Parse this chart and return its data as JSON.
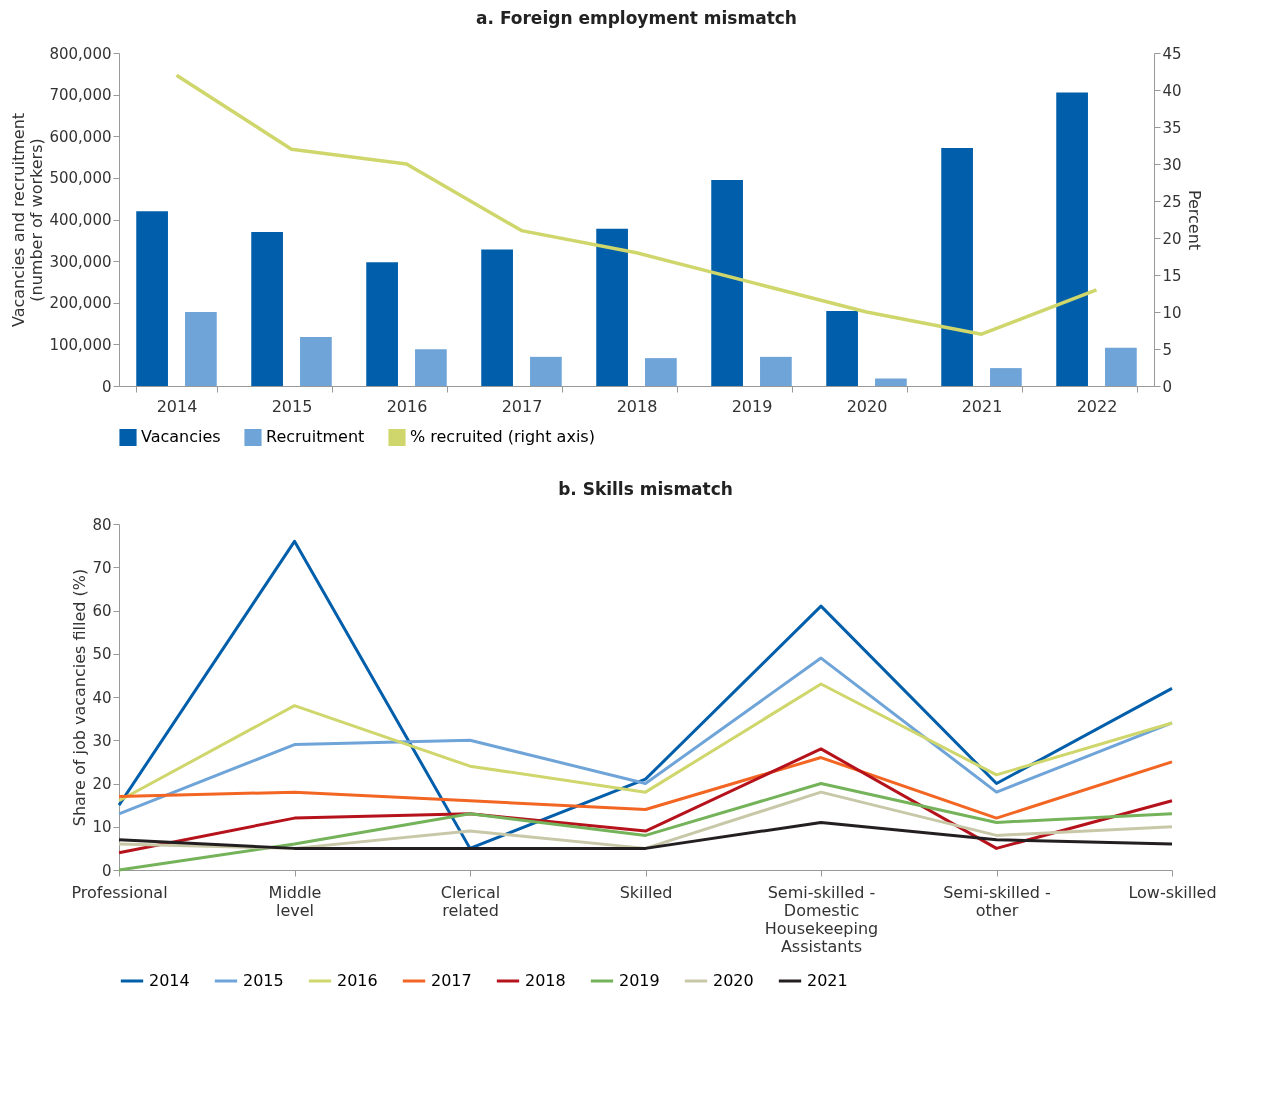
{
  "chart_data": [
    {
      "type": "bar",
      "title": "a. Foreign employment mismatch",
      "categories": [
        "2014",
        "2015",
        "2016",
        "2017",
        "2018",
        "2019",
        "2020",
        "2021",
        "2022"
      ],
      "ylabel": "Vacancies and recruitment (number of workers)",
      "y2label": "Percent",
      "ylim": [
        0,
        800000
      ],
      "yticks": [
        0,
        {
          "value": 100000,
          "label": "100,000"
        },
        {
          "value": 200000,
          "label": "200,000"
        },
        {
          "value": 300000,
          "label": "300,000"
        },
        {
          "value": 400000,
          "label": "400,000"
        },
        {
          "value": 500000,
          "label": "500,000"
        },
        {
          "value": 600000,
          "label": "600,000"
        },
        {
          "value": 700000,
          "label": "700,000"
        },
        {
          "value": 800000,
          "label": "800,000"
        }
      ],
      "y2lim": [
        0,
        45
      ],
      "y2ticks": [
        0,
        5,
        10,
        15,
        20,
        25,
        30,
        35,
        40,
        45
      ],
      "legend": "bottom",
      "series": [
        {
          "name": "Vacancies",
          "type": "bar",
          "color": "#005eaa",
          "values": [
            420000,
            370000,
            297000,
            328000,
            378000,
            495000,
            180000,
            572000,
            705000
          ]
        },
        {
          "name": "Recruitment",
          "type": "bar",
          "color": "#6fa4d8",
          "values": [
            178000,
            118000,
            88000,
            70000,
            67000,
            70000,
            18000,
            43000,
            92000
          ]
        },
        {
          "name": "% recruited (right axis)",
          "type": "line",
          "axis": "y2",
          "color": "#cfd66b",
          "values": [
            42,
            32,
            30,
            21,
            18,
            14,
            10,
            7,
            13
          ]
        }
      ]
    },
    {
      "type": "line",
      "title": "b. Skills mismatch",
      "categories": [
        "Professional",
        "Middle level",
        "Clerical related",
        "Skilled",
        "Semi-skilled - Domestic Housekeeping Assistants",
        "Semi-skilled - other",
        "Low-skilled"
      ],
      "ylabel": "Share of job vacancies filled (%)",
      "ylim": [
        0,
        80
      ],
      "yticks": [
        0,
        10,
        20,
        30,
        40,
        50,
        60,
        70,
        80
      ],
      "legend": "bottom",
      "series": [
        {
          "name": "2014",
          "color": "#005eaa",
          "values": [
            15,
            76,
            5,
            21,
            61,
            20,
            42
          ]
        },
        {
          "name": "2015",
          "color": "#6fa4d8",
          "values": [
            13,
            29,
            30,
            20,
            49,
            18,
            34
          ]
        },
        {
          "name": "2016",
          "color": "#cfd66b",
          "values": [
            16,
            38,
            24,
            18,
            43,
            22,
            34
          ]
        },
        {
          "name": "2017",
          "color": "#f26522",
          "values": [
            17,
            18,
            16,
            14,
            26,
            12,
            25
          ]
        },
        {
          "name": "2018",
          "color": "#b5121b",
          "values": [
            4,
            12,
            13,
            9,
            28,
            5,
            16
          ]
        },
        {
          "name": "2019",
          "color": "#74b35a",
          "values": [
            0,
            6,
            13,
            8,
            20,
            11,
            13
          ]
        },
        {
          "name": "2020",
          "color": "#c8c8a9",
          "values": [
            6,
            5,
            9,
            5,
            18,
            8,
            10
          ]
        },
        {
          "name": "2021",
          "color": "#231f20",
          "values": [
            7,
            5,
            5,
            5,
            11,
            7,
            6
          ]
        }
      ]
    }
  ]
}
